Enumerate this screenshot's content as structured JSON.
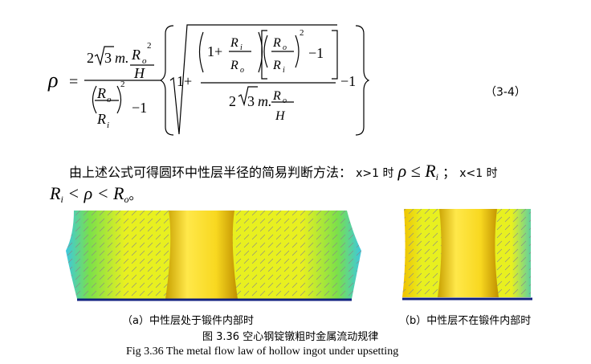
{
  "formula": {
    "tokens": [
      "ρ",
      "=",
      "2",
      "3",
      "m.",
      "R",
      "o",
      "2",
      "H",
      "R",
      "o",
      "R",
      "i",
      "2",
      "−1",
      "1+",
      "R",
      "i",
      "R",
      "o",
      "R",
      "o",
      "R",
      "i",
      "2",
      "−1",
      "1+",
      "2",
      "3",
      "m.",
      "R",
      "o",
      "H",
      "−1"
    ],
    "number": "（3-4）"
  },
  "paragraph": {
    "text": "由上述公式可得圆环中性层半径的简易判断方法：",
    "cond1": "x>1 时",
    "rel1": "ρ ≤ R",
    "rel1_sub": "i",
    "sep": "；",
    "cond2": "x<1 时",
    "rel2_a": "R",
    "rel2_a_sub": "i",
    "rel2_b": " < ρ < R",
    "rel2_b_sub": "o",
    "end": "。"
  },
  "figure": {
    "caption_a": "（a）中性层处于锻件内部时",
    "caption_b": "（b）中性层不在锻件内部时",
    "title_cn": "图 3.36 空心钢锭镦粗时金属流动规律",
    "title_en": "Fig 3.36 The metal flow law of hollow ingot under upsetting"
  }
}
